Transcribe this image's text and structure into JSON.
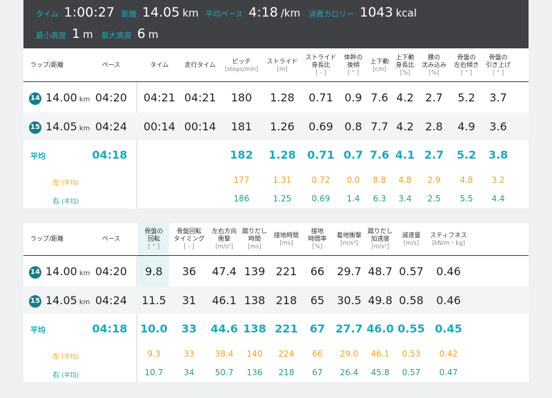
{
  "summary": {
    "time_label": "タイム",
    "time": "1:00:27",
    "distance_label": "距離",
    "distance": "14.05",
    "distance_unit": "km",
    "pace_label": "平均ペース",
    "pace": "4:18",
    "pace_unit": "/km",
    "calorie_label": "消費カロリー",
    "calorie": "1043",
    "calorie_unit": "kcal",
    "min_alt_label": "最小高度",
    "min_alt": "1",
    "min_alt_unit": "m",
    "max_alt_label": "最大高度",
    "max_alt": "6",
    "max_alt_unit": "m"
  },
  "table1": {
    "headers": [
      {
        "l1": "ラップ/距離"
      },
      {
        "l1": "ペース"
      },
      {
        "l1": "タイム"
      },
      {
        "l1": "走行タイム"
      },
      {
        "l1": "ピッチ",
        "u": "[steps/min]"
      },
      {
        "l1": "ストライド",
        "u": "[m]"
      },
      {
        "l1": "ストライド",
        "l2": "身長比",
        "u": "[ - ]"
      },
      {
        "l1": "体幹の",
        "l2": "後傾",
        "u": "[ ° ]"
      },
      {
        "l1": "上下動",
        "u": "[cm]"
      },
      {
        "l1": "上下動",
        "l2": "身長比",
        "u": "[%]"
      },
      {
        "l1": "腰の",
        "l2": "沈み込み",
        "u": "[%]"
      },
      {
        "l1": "骨盤の",
        "l2": "左右傾き",
        "u": "[ ° ]"
      },
      {
        "l1": "骨盤の",
        "l2": "引き上げ",
        "u": "[ ° ]"
      }
    ],
    "laps": [
      {
        "no": "14",
        "dist": "14.00",
        "unit": "km",
        "pace": "04:20",
        "time": "04:21",
        "run": "04:21",
        "vals": [
          "180",
          "1.28",
          "0.71",
          "0.9",
          "7.6",
          "4.2",
          "2.7",
          "5.2",
          "3.7"
        ]
      },
      {
        "no": "15",
        "dist": "14.05",
        "unit": "km",
        "pace": "04:24",
        "time": "00:14",
        "run": "00:14",
        "vals": [
          "181",
          "1.26",
          "0.69",
          "0.8",
          "7.7",
          "4.2",
          "2.8",
          "4.9",
          "3.6"
        ]
      }
    ],
    "avg_label": "平均",
    "avg_pace": "04:18",
    "avg": [
      "182",
      "1.28",
      "0.71",
      "0.7",
      "7.6",
      "4.1",
      "2.7",
      "5.2",
      "3.8"
    ],
    "left_label": "左",
    "right_label": "右",
    "side_suffix": "(平均)",
    "left": [
      "177",
      "1.31",
      "0.72",
      "0.0",
      "8.8",
      "4.8",
      "2.9",
      "4.8",
      "3.2"
    ],
    "right": [
      "186",
      "1.25",
      "0.69",
      "1.4",
      "6.3",
      "3.4",
      "2.5",
      "5.5",
      "4.4"
    ]
  },
  "table2": {
    "headers": [
      {
        "l1": "ラップ/距離"
      },
      {
        "l1": "ペース"
      },
      {
        "l1": "骨盤の",
        "l2": "回転",
        "u": "[ ° ]"
      },
      {
        "l1": "骨盤回転",
        "l2": "タイミング",
        "u": "[ - ]"
      },
      {
        "l1": "左右方向",
        "l2": "衝撃",
        "u": "[m/s²]"
      },
      {
        "l1": "蹴りだし",
        "l2": "時間",
        "u": "[ms]"
      },
      {
        "l1": "接地時間",
        "u": "[ms]"
      },
      {
        "l1": "接地",
        "l2": "時間率",
        "u": "[%]"
      },
      {
        "l1": "着地衝撃",
        "u": "[m/s²]"
      },
      {
        "l1": "蹴りだし",
        "l2": "加速度",
        "u": "[m/s²]"
      },
      {
        "l1": "減速量",
        "u": "[m/s]"
      },
      {
        "l1": "スティフネス",
        "u": "[kN/m・kg]"
      }
    ],
    "laps": [
      {
        "no": "14",
        "dist": "14.00",
        "unit": "km",
        "pace": "04:20",
        "vals": [
          "9.8",
          "36",
          "47.4",
          "139",
          "221",
          "66",
          "29.7",
          "48.7",
          "0.57",
          "0.46"
        ]
      },
      {
        "no": "15",
        "dist": "14.05",
        "unit": "km",
        "pace": "04:24",
        "vals": [
          "11.5",
          "31",
          "46.1",
          "138",
          "218",
          "65",
          "30.5",
          "49.8",
          "0.58",
          "0.46"
        ]
      }
    ],
    "avg_label": "平均",
    "avg_pace": "04:18",
    "avg": [
      "10.0",
      "33",
      "44.6",
      "138",
      "221",
      "67",
      "27.7",
      "46.0",
      "0.55",
      "0.45"
    ],
    "left_label": "左",
    "right_label": "右",
    "side_suffix": "(平均)",
    "left": [
      "9.3",
      "33",
      "38.4",
      "140",
      "224",
      "66",
      "29.0",
      "46.1",
      "0.53",
      "0.42"
    ],
    "right": [
      "10.7",
      "34",
      "50.7",
      "136",
      "218",
      "67",
      "26.4",
      "45.8",
      "0.57",
      "0.47"
    ]
  }
}
